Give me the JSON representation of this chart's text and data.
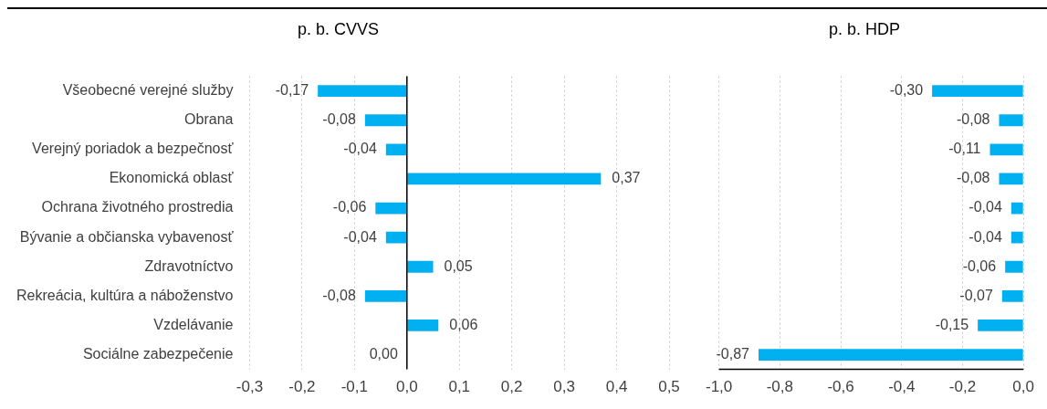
{
  "chart_data": [
    {
      "type": "bar",
      "orientation": "horizontal",
      "title": "p. b. CVVS",
      "categories": [
        "Všeobecné verejné služby",
        "Obrana",
        "Verejný poriadok a bezpečnosť",
        "Ekonomická oblasť",
        "Ochrana životného prostredia",
        "Bývanie a občianska vybavenosť",
        "Zdravotníctvo",
        "Rekreácia, kultúra a náboženstvo",
        "Vzdelávanie",
        "Sociálne zabezpečenie"
      ],
      "values": [
        -0.17,
        -0.08,
        -0.04,
        0.37,
        -0.06,
        -0.04,
        0.05,
        -0.08,
        0.06,
        0.0
      ],
      "value_labels": [
        "-0,17",
        "-0,08",
        "-0,04",
        "0,37",
        "-0,06",
        "-0,04",
        "0,05",
        "-0,08",
        "0,06",
        "0,00"
      ],
      "color": "#00b0f0",
      "xlim": [
        -0.3,
        0.5
      ],
      "xticks": [
        {
          "value": -0.3,
          "label": "-0,3"
        },
        {
          "value": -0.2,
          "label": "-0,2"
        },
        {
          "value": -0.1,
          "label": "-0,1"
        },
        {
          "value": 0,
          "label": "0,0"
        },
        {
          "value": 0.1,
          "label": "0,1"
        },
        {
          "value": 0.2,
          "label": "0,2"
        },
        {
          "value": 0.3,
          "label": "0,3"
        },
        {
          "value": 0.4,
          "label": "0,4"
        },
        {
          "value": 0.5,
          "label": "0,5"
        }
      ],
      "grid": "x"
    },
    {
      "type": "bar",
      "orientation": "horizontal",
      "title": "p. b. HDP",
      "categories": [
        null,
        null,
        null,
        null,
        null,
        null,
        null,
        null,
        null,
        null
      ],
      "values": [
        -0.3,
        -0.08,
        -0.11,
        -0.08,
        -0.04,
        -0.04,
        -0.06,
        -0.07,
        -0.15,
        -0.87
      ],
      "value_labels": [
        "-0,30",
        "-0,08",
        "-0,11",
        "-0,08",
        "-0,04",
        "-0,04",
        "-0,06",
        "-0,07",
        "-0,15",
        "-0,87"
      ],
      "color": "#00b0f0",
      "xlim": [
        -1.0,
        0.0
      ],
      "xticks": [
        {
          "value": -1.0,
          "label": "-1,0"
        },
        {
          "value": -0.8,
          "label": "-0,8"
        },
        {
          "value": -0.6,
          "label": "-0,6"
        },
        {
          "value": -0.4,
          "label": "-0,4"
        },
        {
          "value": -0.2,
          "label": "-0,2"
        },
        {
          "value": 0,
          "label": "0,0"
        }
      ],
      "grid": "x",
      "tick_labels": "x"
    }
  ]
}
